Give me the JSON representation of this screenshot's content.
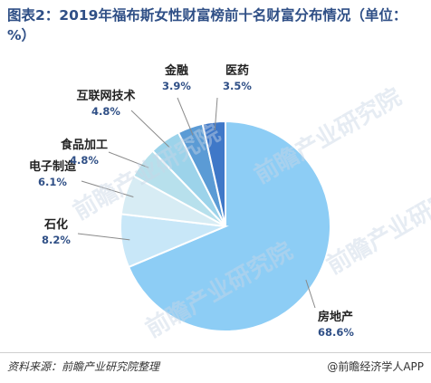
{
  "title": "图表2：2019年福布斯女性财富榜前十名财富分布情况（单位：%）",
  "watermark": "前瞻产业研究院",
  "chart_data": {
    "type": "pie",
    "categories": [
      "房地产",
      "石化",
      "电子制造",
      "食品加工",
      "互联网技术",
      "金融",
      "医药"
    ],
    "values": [
      68.6,
      8.2,
      6.1,
      4.8,
      4.8,
      3.9,
      3.5
    ],
    "value_labels": [
      "68.6%",
      "8.2%",
      "6.1%",
      "4.8%",
      "4.8%",
      "3.9%",
      "3.5%"
    ],
    "colors": [
      "#8dcdf5",
      "#c8e7f8",
      "#d7ecf4",
      "#b7e0ec",
      "#9cd3ea",
      "#5b9bd5",
      "#3f78c8"
    ],
    "start_angle_deg": 0,
    "direction": "clockwise"
  },
  "footer": {
    "source": "资料来源：前瞻产业研究院整理",
    "brand": "@前瞻经济学人APP"
  }
}
